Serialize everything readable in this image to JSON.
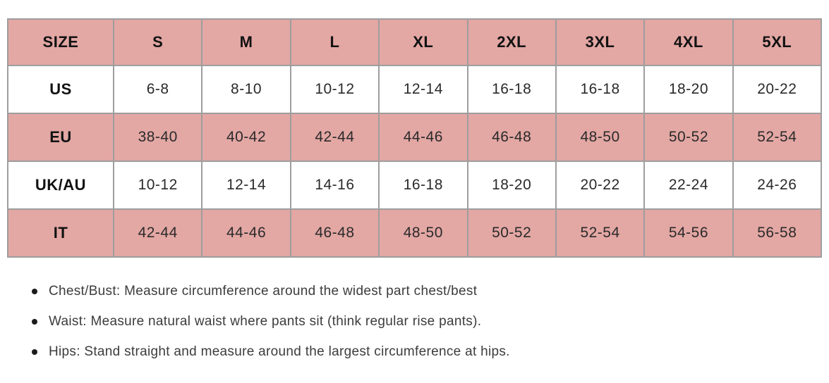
{
  "chart_data": {
    "type": "table",
    "title": "",
    "columns": [
      "SIZE",
      "S",
      "M",
      "L",
      "XL",
      "2XL",
      "3XL",
      "4XL",
      "5XL"
    ],
    "rows": [
      {
        "label": "US",
        "shaded": false,
        "values": [
          "6-8",
          "8-10",
          "10-12",
          "12-14",
          "16-18",
          "16-18",
          "18-20",
          "20-22"
        ]
      },
      {
        "label": "EU",
        "shaded": true,
        "values": [
          "38-40",
          "40-42",
          "42-44",
          "44-46",
          "46-48",
          "48-50",
          "50-52",
          "52-54"
        ]
      },
      {
        "label": "UK/AU",
        "shaded": false,
        "values": [
          "10-12",
          "12-14",
          "14-16",
          "16-18",
          "18-20",
          "20-22",
          "22-24",
          "24-26"
        ]
      },
      {
        "label": "IT",
        "shaded": true,
        "values": [
          "42-44",
          "44-46",
          "46-48",
          "48-50",
          "50-52",
          "52-54",
          "54-56",
          "56-58"
        ]
      }
    ],
    "layout": {
      "grid": true,
      "shaded_rows": [
        "header",
        "EU",
        "IT"
      ]
    }
  },
  "notes": [
    "Chest/Bust: Measure circumference around the widest part chest/best",
    "Waist: Measure natural waist where pants sit (think regular rise pants).",
    "Hips: Stand straight and measure around the largest circumference at hips."
  ],
  "colors": {
    "shaded_row_bg": "#e3a7a4",
    "table_border": "#9e9e9e",
    "header_text": "#121212",
    "cell_text": "#2a2a2a",
    "note_text": "#3c3c3c"
  }
}
